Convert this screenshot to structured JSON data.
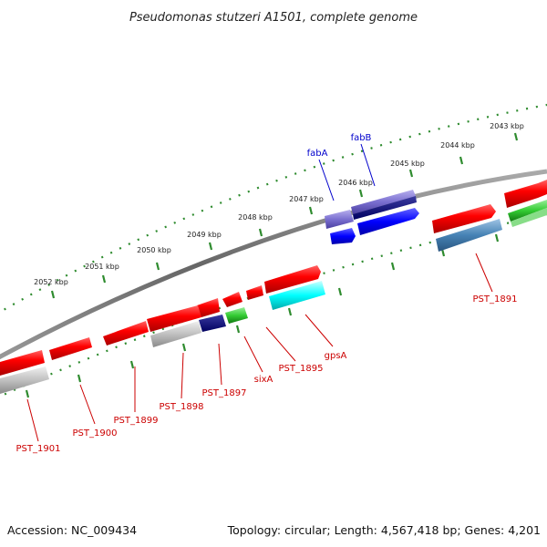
{
  "title": "Pseudomonas stutzeri A1501, complete genome",
  "footer": {
    "accession": "Accession: NC_009434",
    "topology": "Topology: circular; Length: 4,567,418 bp; Genes: 4,201"
  },
  "ticks": [
    "2043 kbp",
    "2044 kbp",
    "2045 kbp",
    "2046 kbp",
    "2047 kbp",
    "2048 kbp",
    "2049 kbp",
    "2050 kbp",
    "2051 kbp",
    "2052 kbp"
  ],
  "labels": {
    "fabA": "fabA",
    "fabB": "fabB",
    "PST_1891": "PST_1891",
    "gpsA": "gpsA",
    "PST_1895": "PST_1895",
    "sixA": "sixA",
    "PST_1897": "PST_1897",
    "PST_1898": "PST_1898",
    "PST_1899": "PST_1899",
    "PST_1900": "PST_1900",
    "PST_1901": "PST_1901"
  },
  "colors": {
    "red": "#ff0000",
    "dark_red": "#aa0000",
    "grey": "#bbbbbb",
    "navy": "#000080",
    "blue": "#0000ff",
    "slate": "#7a6fd0",
    "cyan": "#00ffff",
    "green": "#33cc33",
    "steel": "#4682b4",
    "backbone": "#777777",
    "tick_green": "#2e8b2e",
    "label_red": "#cc0000",
    "label_blue": "#0000cc"
  }
}
